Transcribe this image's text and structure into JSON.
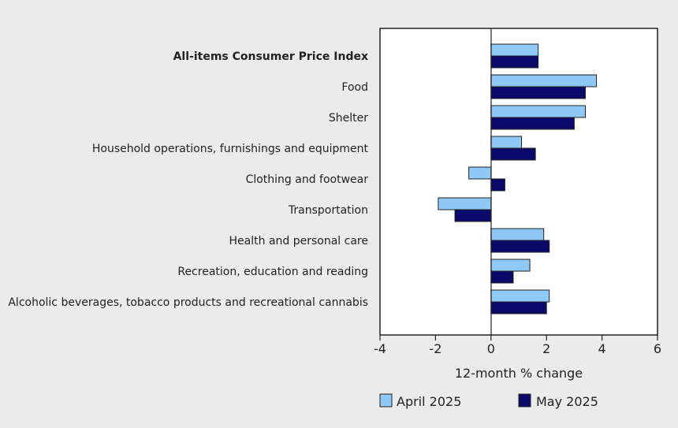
{
  "chart_data": {
    "type": "bar",
    "orientation": "horizontal",
    "categories": [
      "All-items Consumer Price Index",
      "Food",
      "Shelter",
      "Household operations, furnishings and equipment",
      "Clothing and footwear",
      "Transportation",
      "Health and personal care",
      "Recreation, education and reading",
      "Alcoholic beverages, tobacco products and recreational cannabis"
    ],
    "bold_categories": [
      "All-items Consumer Price Index"
    ],
    "series": [
      {
        "name": "April 2025",
        "color": "#8ec8f6",
        "values": [
          1.7,
          3.8,
          3.4,
          1.1,
          -0.8,
          -1.9,
          1.9,
          1.4,
          2.1
        ]
      },
      {
        "name": "May 2025",
        "color": "#0a0a6b",
        "values": [
          1.7,
          3.4,
          3.0,
          1.6,
          0.5,
          -1.3,
          2.1,
          0.8,
          2.0
        ]
      }
    ],
    "xlabel": "12-month % change",
    "xlim": [
      -4,
      6
    ],
    "xticks": [
      -4,
      -2,
      0,
      2,
      4,
      6
    ],
    "grid": false,
    "legend_position": "bottom"
  }
}
